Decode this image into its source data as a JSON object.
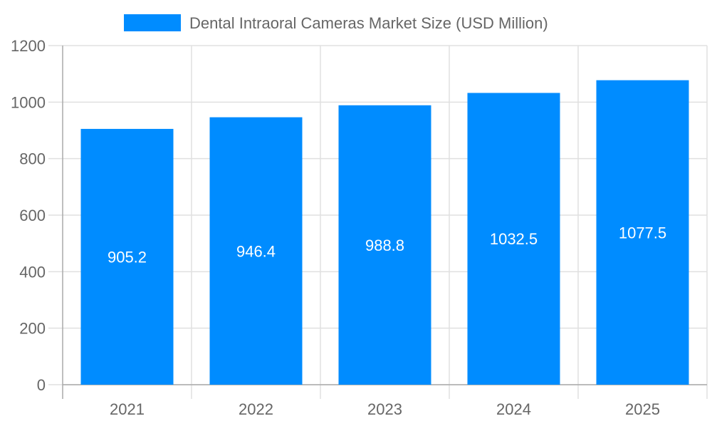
{
  "chart_data": {
    "type": "bar",
    "categories": [
      "2021",
      "2022",
      "2023",
      "2024",
      "2025"
    ],
    "series": [
      {
        "name": "Dental Intraoral Cameras Market Size (USD Million)",
        "values": [
          905.2,
          946.4,
          988.8,
          1032.5,
          1077.5
        ]
      }
    ],
    "data_labels": [
      "905.2",
      "946.4",
      "988.8",
      "1032.5",
      "1077.5"
    ],
    "ylim": [
      0,
      1200
    ],
    "yticks": [
      "0",
      "200",
      "400",
      "600",
      "800",
      "1000",
      "1200"
    ],
    "grid": true,
    "legend": "top-center",
    "color": "#008cff"
  }
}
